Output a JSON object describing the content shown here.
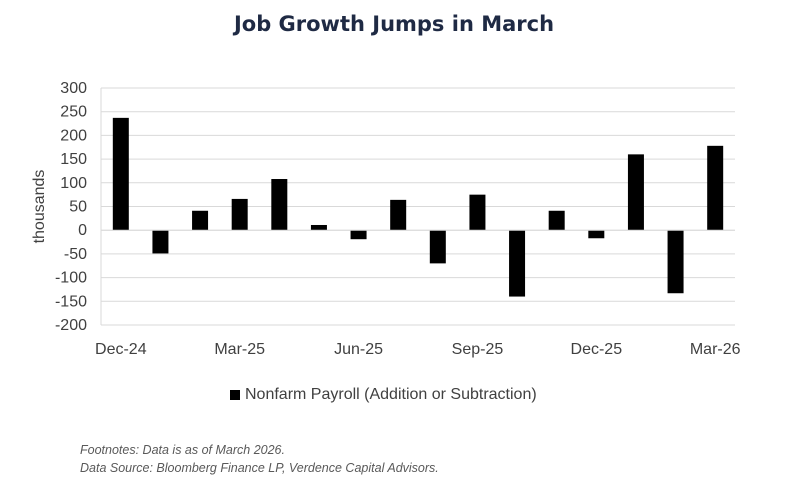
{
  "chart_data": {
    "type": "bar",
    "title": "Job Growth Jumps in March",
    "ylabel": "thousands",
    "xlabel": "",
    "ylim": [
      -200,
      300
    ],
    "yticks": [
      300,
      250,
      200,
      150,
      100,
      50,
      0,
      -50,
      -100,
      -150,
      -200
    ],
    "grid": true,
    "categories": [
      "Dec-24",
      "Jan-25",
      "Feb-25",
      "Mar-25",
      "Apr-25",
      "May-25",
      "Jun-25",
      "Jul-25",
      "Aug-25",
      "Sep-25",
      "Oct-25",
      "Nov-25",
      "Dec-25",
      "Jan-26",
      "Feb-26",
      "Mar-26"
    ],
    "x_tick_labels": [
      "Dec-24",
      "Mar-25",
      "Jun-25",
      "Sep-25",
      "Dec-25",
      "Mar-26"
    ],
    "series": [
      {
        "name": "Nonfarm Payroll (Addition or Subtraction)",
        "values": [
          237,
          -49,
          41,
          66,
          108,
          11,
          -19,
          64,
          -70,
          75,
          -140,
          41,
          -17,
          160,
          -133,
          178
        ]
      }
    ],
    "legend": "bottom",
    "bar_color": "#000000",
    "grid_color": "#d9d9d9"
  },
  "footnotes": {
    "line1": "Footnotes: Data is as of March 2026.",
    "line2": "Data Source: Bloomberg Finance LP, Verdence Capital Advisors."
  }
}
